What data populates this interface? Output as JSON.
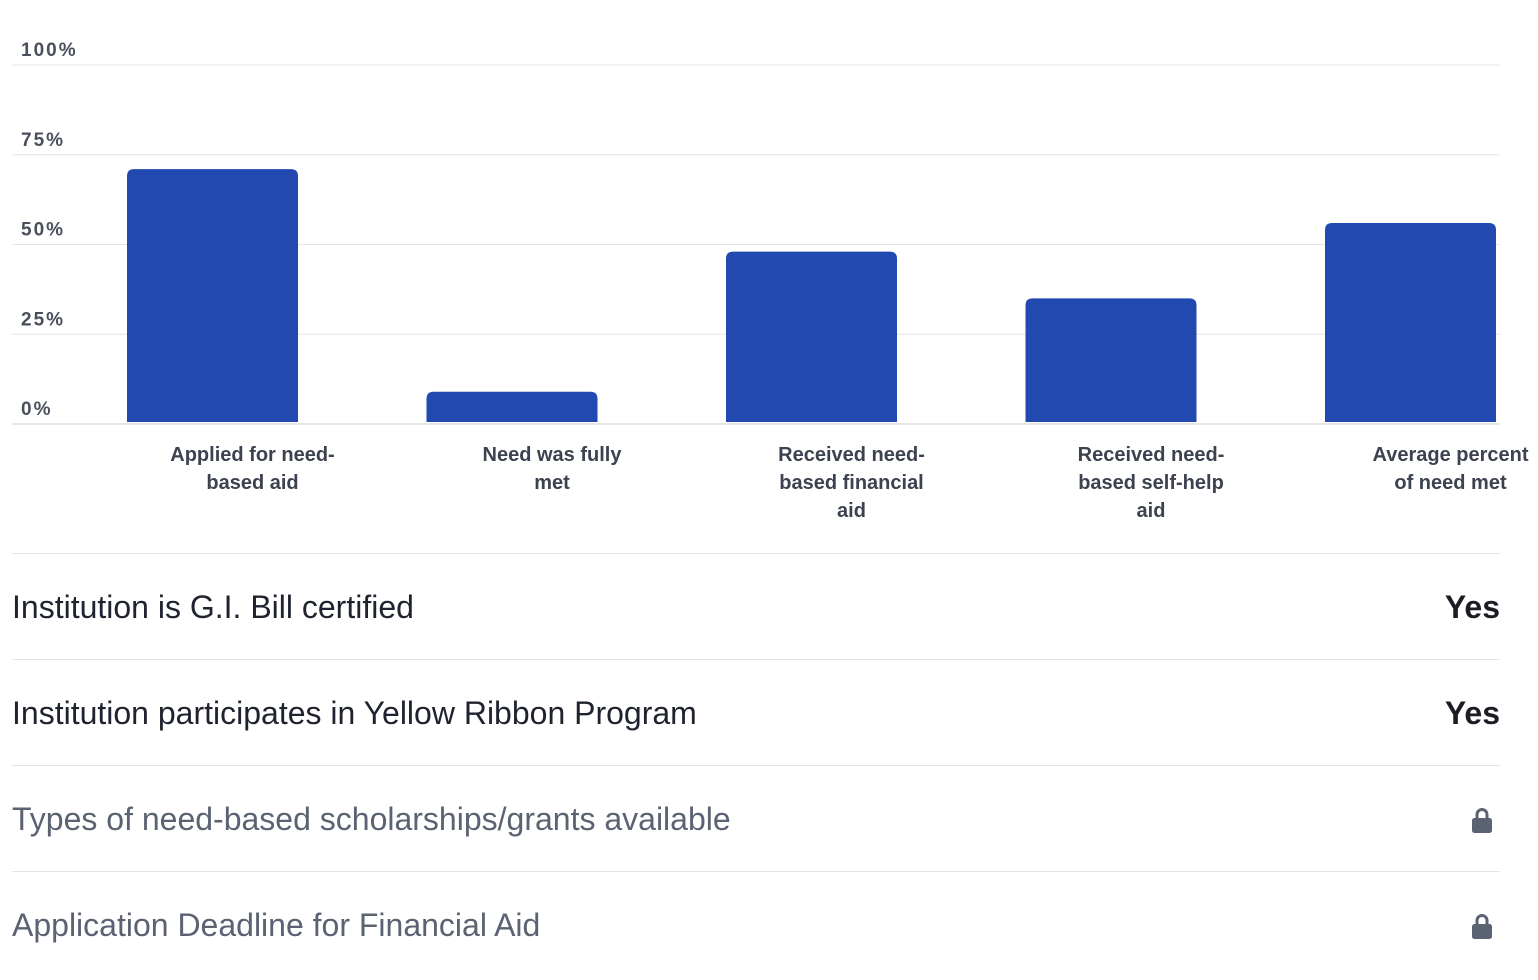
{
  "chart_data": {
    "type": "bar",
    "categories": [
      "Applied for need-based aid",
      "Need was fully met",
      "Received need-based financial aid",
      "Received need-based self-help aid",
      "Average percent of need met"
    ],
    "category_lines": [
      [
        "Applied for need-",
        "based aid"
      ],
      [
        "Need was fully",
        "met"
      ],
      [
        "Received need-",
        "based financial",
        "aid"
      ],
      [
        "Received need-",
        "based self-help",
        "aid"
      ],
      [
        "Average percent",
        "of need met"
      ]
    ],
    "values": [
      71,
      9,
      48,
      35,
      56
    ],
    "y_ticks": [
      "0%",
      "25%",
      "50%",
      "75%",
      "100%"
    ],
    "ylim": [
      0,
      100
    ],
    "grid": true,
    "bar_color": "#2149b0",
    "unit": "%"
  },
  "rows": [
    {
      "label": "Institution is G.I. Bill certified",
      "value": "Yes",
      "locked": false
    },
    {
      "label": "Institution participates in Yellow Ribbon Program",
      "value": "Yes",
      "locked": false
    },
    {
      "label": "Types of need-based scholarships/grants available",
      "value": "",
      "locked": true,
      "icon": "lock-icon"
    },
    {
      "label": "Application Deadline for Financial Aid",
      "value": "",
      "locked": true,
      "icon": "lock-icon"
    }
  ]
}
